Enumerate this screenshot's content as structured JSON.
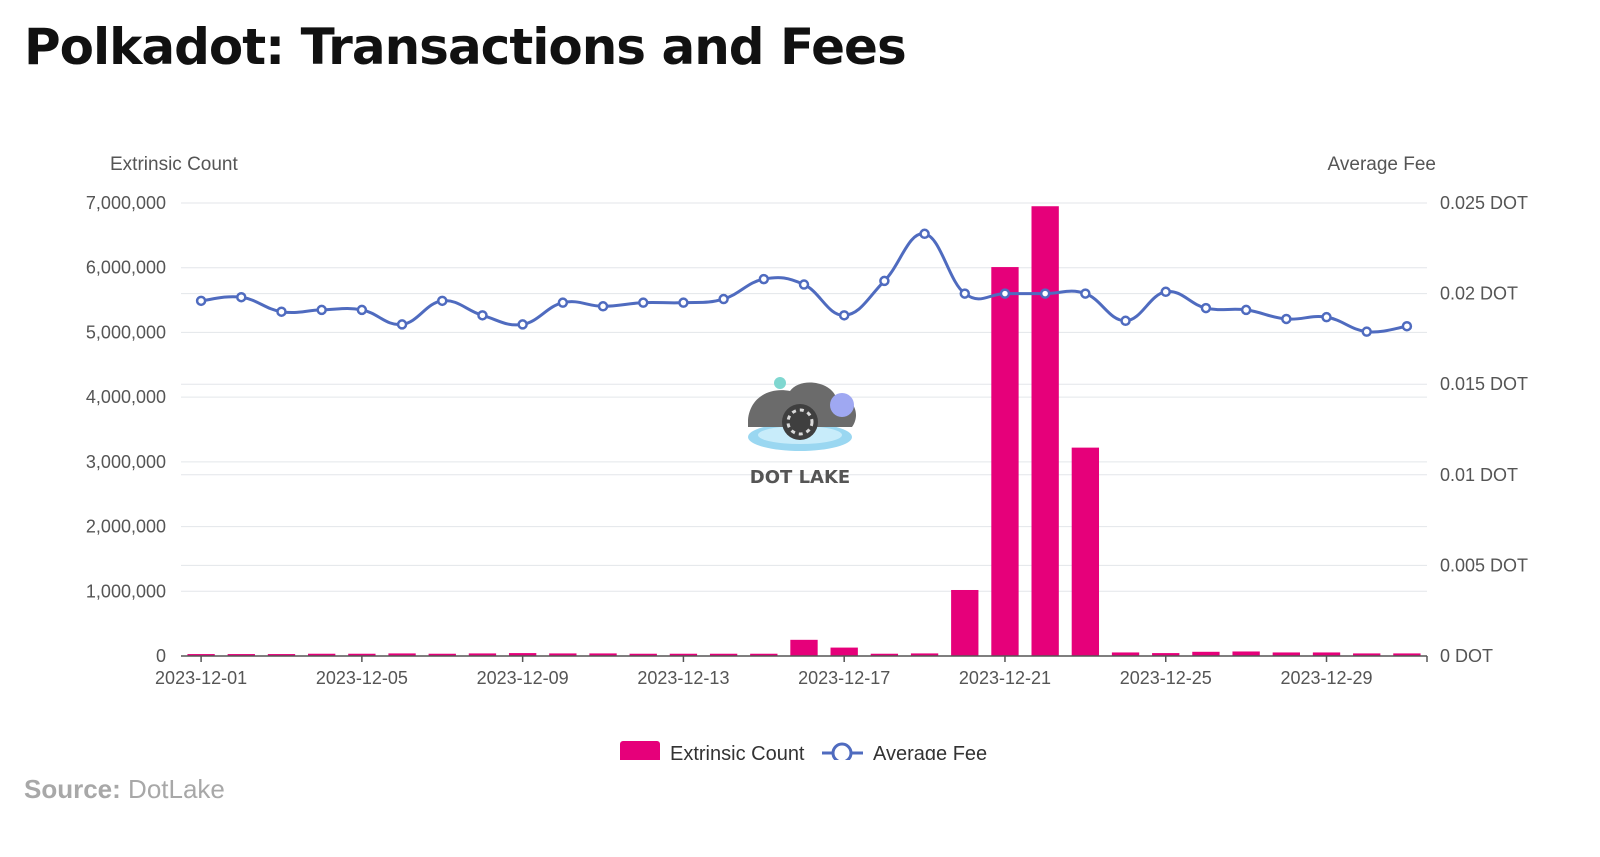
{
  "title": "Polkadot: Transactions and Fees",
  "source": {
    "label": "Source:",
    "value": "DotLake"
  },
  "watermark": "DOT LAKE",
  "colors": {
    "bar": "#E6007A",
    "line": "#4F6BBF",
    "grid": "#E3E6EA",
    "axis": "#555555"
  },
  "chart_data": {
    "type": "bar",
    "y_left_label": "Extrinsic Count",
    "y_right_label": "Average Fee",
    "ylim_left": [
      0,
      7000000
    ],
    "ylim_right": [
      0,
      0.025
    ],
    "left_ticks": [
      "0",
      "1,000,000",
      "2,000,000",
      "3,000,000",
      "4,000,000",
      "5,000,000",
      "6,000,000",
      "7,000,000"
    ],
    "right_ticks": [
      "0 DOT",
      "0.005 DOT",
      "0.01 DOT",
      "0.015 DOT",
      "0.02 DOT",
      "0.025 DOT"
    ],
    "x_tick_labels": [
      "2023-12-01",
      "2023-12-05",
      "2023-12-09",
      "2023-12-13",
      "2023-12-17",
      "2023-12-21",
      "2023-12-25",
      "2023-12-29"
    ],
    "categories": [
      "2023-12-01",
      "2023-12-02",
      "2023-12-03",
      "2023-12-04",
      "2023-12-05",
      "2023-12-06",
      "2023-12-07",
      "2023-12-08",
      "2023-12-09",
      "2023-12-10",
      "2023-12-11",
      "2023-12-12",
      "2023-12-13",
      "2023-12-14",
      "2023-12-15",
      "2023-12-16",
      "2023-12-17",
      "2023-12-18",
      "2023-12-19",
      "2023-12-20",
      "2023-12-21",
      "2023-12-22",
      "2023-12-23",
      "2023-12-24",
      "2023-12-25",
      "2023-12-26",
      "2023-12-27",
      "2023-12-28",
      "2023-12-29",
      "2023-12-30",
      "2023-12-31"
    ],
    "series": [
      {
        "name": "Extrinsic Count",
        "type": "bar",
        "values": [
          30000,
          30000,
          30000,
          35000,
          35000,
          40000,
          35000,
          40000,
          45000,
          40000,
          40000,
          35000,
          35000,
          35000,
          35000,
          250000,
          130000,
          35000,
          40000,
          1020000,
          6010000,
          6950000,
          3220000,
          55000,
          45000,
          65000,
          70000,
          55000,
          55000,
          40000,
          40000
        ]
      },
      {
        "name": "Average Fee",
        "type": "line",
        "values": [
          0.0196,
          0.0198,
          0.019,
          0.0191,
          0.0191,
          0.0183,
          0.0196,
          0.0188,
          0.0183,
          0.0195,
          0.0193,
          0.0195,
          0.0195,
          0.0197,
          0.0208,
          0.0205,
          0.0188,
          0.0207,
          0.0233,
          0.02,
          0.02,
          0.02,
          0.02,
          0.0185,
          0.0201,
          0.0192,
          0.0191,
          0.0186,
          0.0187,
          0.0179,
          0.0182
        ]
      }
    ],
    "legend": [
      "Extrinsic Count",
      "Average Fee"
    ],
    "legend_position": "bottom-center",
    "grid": true
  }
}
